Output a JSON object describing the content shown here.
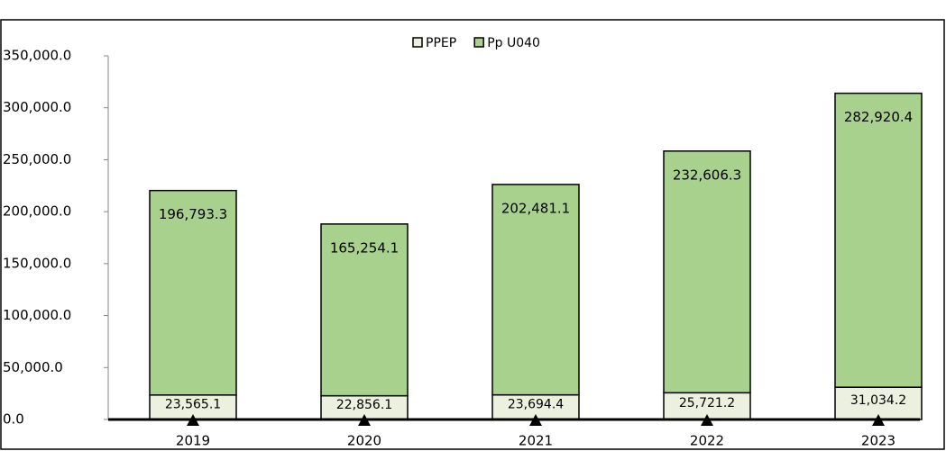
{
  "chart_data": {
    "type": "stacked_bar",
    "categories": [
      "2019",
      "2020",
      "2021",
      "2022",
      "2023"
    ],
    "series": [
      {
        "name": "PPEP",
        "color": "#ebf1de",
        "values": [
          23565.1,
          22856.1,
          23694.4,
          25721.2,
          31034.2
        ],
        "value_labels": [
          "23,565.1",
          "22,856.1",
          "23,694.4",
          "25,721.2",
          "31,034.2"
        ]
      },
      {
        "name": "Pp U040",
        "color": "#a9d18e",
        "values": [
          196793.3,
          165254.1,
          202481.1,
          232606.3,
          282920.4
        ],
        "value_labels": [
          "196,793.3",
          "165,254.1",
          "202,481.1",
          "232,606.3",
          "282,920.4"
        ]
      }
    ],
    "ylim": [
      0,
      350000
    ],
    "yticks": [
      {
        "value": 0,
        "label": "0.0"
      },
      {
        "value": 50000,
        "label": "50,000.0"
      },
      {
        "value": 100000,
        "label": "100,000.0"
      },
      {
        "value": 150000,
        "label": "150,000.0"
      },
      {
        "value": 200000,
        "label": "200,000.0"
      },
      {
        "value": 250000,
        "label": "250,000.0"
      },
      {
        "value": 300000,
        "label": "300,000.0"
      },
      {
        "value": 350000,
        "label": "350,000.0"
      }
    ],
    "legend": "top"
  }
}
